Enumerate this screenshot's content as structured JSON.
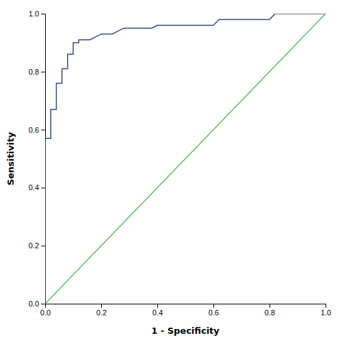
{
  "chart_data": {
    "type": "line",
    "xlabel": "1 - Specificity",
    "ylabel": "Sensitivity",
    "xlim": [
      0.0,
      1.0
    ],
    "ylim": [
      0.0,
      1.0
    ],
    "xticks": [
      {
        "value": 0.0,
        "label": "0.0"
      },
      0.2,
      0.4,
      0.6,
      0.8,
      {
        "value": 1.0,
        "label": "1.0"
      }
    ],
    "yticks": [
      {
        "value": 0.0,
        "label": "0.0"
      },
      0.2,
      0.4,
      0.6,
      0.8,
      {
        "value": 1.0,
        "label": "1.0"
      }
    ],
    "grid": false,
    "series": [
      {
        "color": "#5cb85c",
        "x": [
          0,
          1
        ],
        "values": [
          0,
          1
        ]
      },
      {
        "color": "#3a4a7a",
        "x": [
          0.0,
          0.0,
          0.0,
          0.0,
          0.0,
          0.0,
          0.0,
          0.02,
          0.02,
          0.02,
          0.04,
          0.04,
          0.04,
          0.06,
          0.06,
          0.08,
          0.08,
          0.1,
          0.1,
          0.12,
          0.12,
          0.14,
          0.16,
          0.18,
          0.2,
          0.22,
          0.24,
          0.26,
          0.28,
          0.3,
          0.32,
          0.38,
          0.4,
          0.6,
          0.62,
          0.8,
          0.82,
          1.0
        ],
        "values": [
          0.0,
          0.29,
          0.33,
          0.38,
          0.43,
          0.48,
          0.57,
          0.57,
          0.62,
          0.67,
          0.67,
          0.71,
          0.76,
          0.76,
          0.81,
          0.81,
          0.86,
          0.86,
          0.9,
          0.9,
          0.91,
          0.91,
          0.91,
          0.92,
          0.93,
          0.93,
          0.93,
          0.94,
          0.95,
          0.95,
          0.95,
          0.95,
          0.96,
          0.96,
          0.98,
          0.98,
          1.0,
          1.0
        ]
      }
    ]
  }
}
